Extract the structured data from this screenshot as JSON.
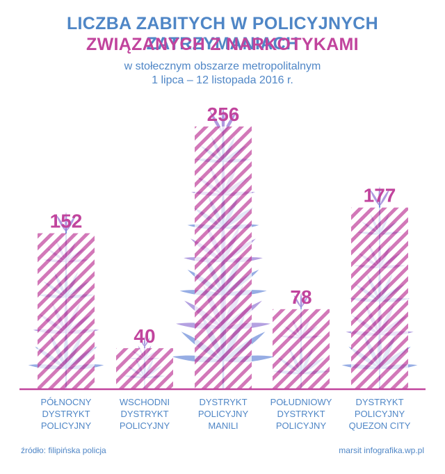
{
  "header": {
    "title_line1": "LICZBA ZABITYCH W POLICYJNYCH ZATRZYMANIACH",
    "title_line2": "ZWIĄZANYCH Z NARKOTYKAMI",
    "subtitle_line1": "w stołecznym obszarze metropolitalnym",
    "subtitle_line2": "1 lipca – 12 listopada 2016 r."
  },
  "colors": {
    "blue": "#4f86c6",
    "magenta": "#c1449d",
    "plant_blue": "#5b7fd6",
    "plant_violet": "#8a6cd0"
  },
  "chart_data": {
    "type": "bar",
    "title": "LICZBA ZABITYCH W POLICYJNYCH ZATRZYMANIACH ZWIĄZANYCH Z NARKOTYKAMI",
    "subtitle": "w stołecznym obszarze metropolitalnym 1 lipca – 12 listopada 2016 r.",
    "categories": [
      [
        "PÓŁNOCNY",
        "DYSTRYKT",
        "POLICYJNY"
      ],
      [
        "WSCHODNI",
        "DYSTRYKT",
        "POLICYJNY"
      ],
      [
        "DYSTRYKT",
        "POLICYJNY",
        "MANILI"
      ],
      [
        "POŁUDNIOWY",
        "DYSTRYKT",
        "POLICYJNY"
      ],
      [
        "DYSTRYKT",
        "POLICYJNY",
        "QUEZON CITY"
      ]
    ],
    "values": [
      152,
      40,
      256,
      78,
      177
    ],
    "value_labels": [
      "152",
      "40",
      "256",
      "78",
      "177"
    ],
    "ylim": [
      0,
      256
    ],
    "xlabel": "",
    "ylabel": "",
    "grid": false,
    "legend": "none",
    "bar_fill": "diagonal-stripes",
    "decoration_icon": "cannabis-plant-icon"
  },
  "footer": {
    "source": "źródło: filipińska policja",
    "credit": "marsit infografika.wp.pl"
  }
}
